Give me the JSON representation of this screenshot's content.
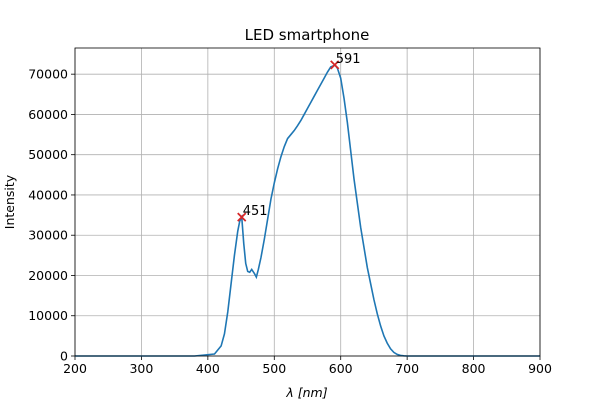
{
  "chart_data": {
    "type": "line",
    "title": "LED smartphone",
    "xlabel": "λ [nm]",
    "ylabel": "Intensity",
    "xlim": [
      200,
      900
    ],
    "ylim": [
      0,
      76500
    ],
    "xticks": [
      200,
      300,
      400,
      500,
      600,
      700,
      800,
      900
    ],
    "yticks": [
      0,
      10000,
      20000,
      30000,
      40000,
      50000,
      60000,
      70000
    ],
    "grid": true,
    "line_color": "#1f77b4",
    "marker_color": "#d62728",
    "series": [
      {
        "x": [
          200,
          300,
          380,
          410,
          420,
          425,
          430,
          435,
          440,
          445,
          448,
          451,
          454,
          457,
          460,
          463,
          466,
          470,
          473,
          476,
          480,
          485,
          490,
          495,
          500,
          505,
          510,
          515,
          520,
          525,
          530,
          535,
          540,
          545,
          550,
          555,
          560,
          565,
          570,
          575,
          580,
          585,
          588,
          591,
          595,
          600,
          605,
          610,
          615,
          620,
          625,
          630,
          635,
          640,
          645,
          650,
          655,
          660,
          665,
          670,
          675,
          680,
          685,
          690,
          695,
          700,
          705,
          710,
          720,
          730,
          750,
          800,
          900
        ],
        "y": [
          0,
          0,
          0,
          500,
          2500,
          5500,
          11000,
          18000,
          25000,
          31000,
          33500,
          34500,
          28000,
          23000,
          21000,
          20800,
          21500,
          20500,
          19600,
          21500,
          24500,
          29000,
          34000,
          39000,
          43000,
          46500,
          49500,
          52000,
          54000,
          55000,
          56000,
          57200,
          58500,
          60000,
          61500,
          63000,
          64500,
          66000,
          67500,
          69000,
          70500,
          71800,
          72000,
          72300,
          71500,
          69000,
          64000,
          58000,
          51000,
          44000,
          38000,
          32000,
          27000,
          22000,
          18000,
          14000,
          10500,
          7500,
          5000,
          3200,
          1800,
          900,
          400,
          150,
          50,
          0,
          0,
          0,
          0,
          0,
          0,
          0,
          0
        ]
      }
    ],
    "annotations": [
      {
        "x": 451,
        "y": 34500,
        "label": "451"
      },
      {
        "x": 591,
        "y": 72300,
        "label": "591"
      }
    ]
  }
}
